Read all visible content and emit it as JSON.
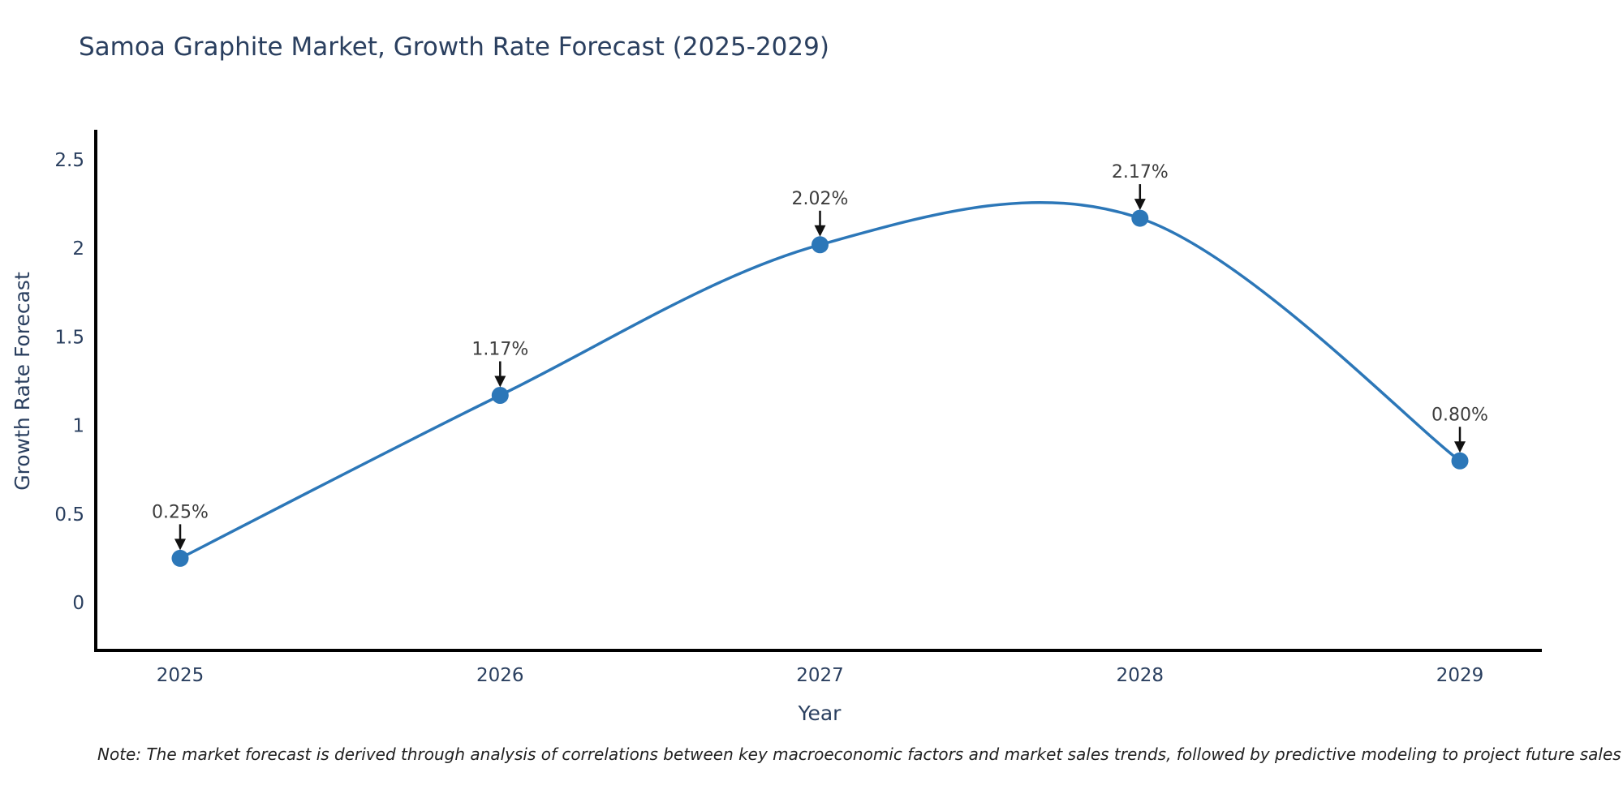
{
  "note": "Note: The market forecast is derived through analysis of correlations between key macroeconomic factors and market sales trends, followed by predictive modeling to project future sales",
  "chart_data": {
    "type": "line",
    "line_shape": "spline",
    "title": "Samoa Graphite Market, Growth Rate Forecast (2025-2029)",
    "xlabel": "Year",
    "ylabel": "Growth Rate Forecast",
    "x": [
      2025,
      2026,
      2027,
      2028,
      2029
    ],
    "xtick_labels": [
      "2025",
      "2026",
      "2027",
      "2028",
      "2029"
    ],
    "values": [
      0.25,
      1.17,
      2.02,
      2.17,
      0.8
    ],
    "point_labels": [
      "0.25%",
      "1.17%",
      "2.02%",
      "2.17%",
      "0.80%"
    ],
    "yticks": [
      0,
      0.5,
      1,
      1.5,
      2,
      2.5
    ],
    "ytick_labels": [
      "0",
      "0.5",
      "1",
      "1.5",
      "2",
      "2.5"
    ],
    "ylim": [
      -0.3,
      2.7
    ],
    "grid": false,
    "legend": false,
    "annotation_style": "value label above each point with black down-arrow",
    "colors": {
      "line": "#2c77b8",
      "marker": "#2c77b8",
      "annotation": "#3d3d3d",
      "arrow": "#111111",
      "axis": "#000000",
      "text": "#2a3f5f",
      "background": "#ffffff"
    }
  }
}
